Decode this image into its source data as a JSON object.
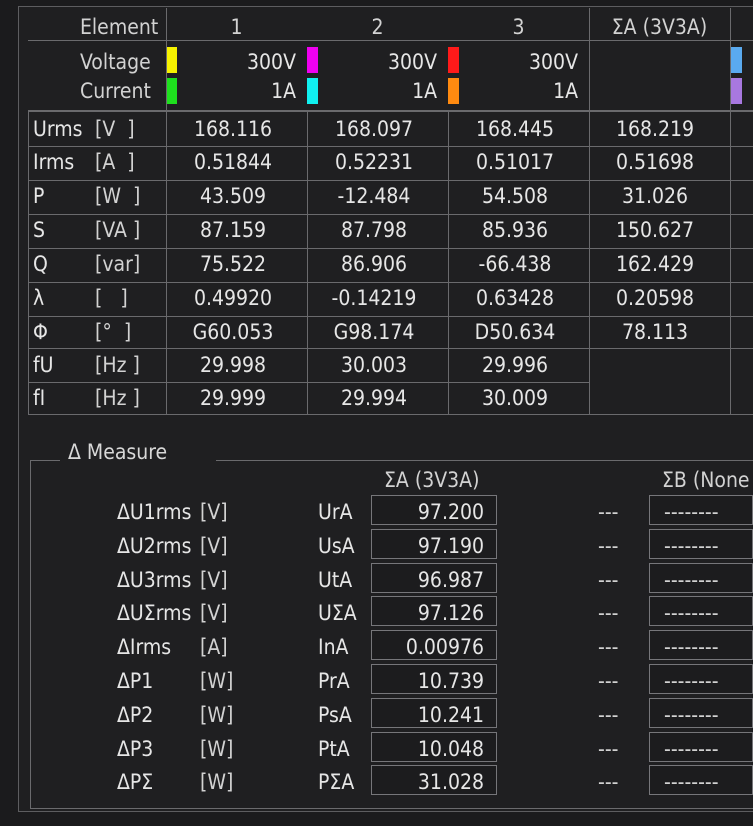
{
  "header": {
    "element_label": "Element",
    "columns": [
      "1",
      "2",
      "3",
      "ΣA (3V3A)"
    ],
    "voltage_label": "Voltage",
    "current_label": "Current",
    "voltage_ranges": [
      "300V",
      "300V",
      "300V"
    ],
    "current_ranges": [
      "1A",
      "1A",
      "1A"
    ],
    "voltage_colors": [
      "#f6f200",
      "#f000f0",
      "#ff1a1a"
    ],
    "current_colors": [
      "#1ee01e",
      "#10f0f0",
      "#ff8a10"
    ],
    "edge_colors": [
      "#5aaaf0",
      "#a878e0"
    ]
  },
  "rows": [
    {
      "name": "Urms",
      "unit": "[V  ]",
      "values": [
        "168.116",
        "168.097",
        "168.445",
        "168.219"
      ]
    },
    {
      "name": "Irms",
      "unit": "[A  ]",
      "values": [
        "0.51844",
        "0.52231",
        "0.51017",
        "0.51698"
      ]
    },
    {
      "name": "P",
      "unit": "[W  ]",
      "values": [
        "43.509",
        "-12.484",
        "54.508",
        "31.026"
      ]
    },
    {
      "name": "S",
      "unit": "[VA ]",
      "values": [
        "87.159",
        "87.798",
        "85.936",
        "150.627"
      ]
    },
    {
      "name": "Q",
      "unit": "[var]",
      "values": [
        "75.522",
        "86.906",
        "-66.438",
        "162.429"
      ]
    },
    {
      "name": "λ",
      "unit": "[   ]",
      "values": [
        "0.49920",
        "-0.14219",
        "0.63428",
        "0.20598"
      ]
    },
    {
      "name": "Φ",
      "unit": "[°  ]",
      "values": [
        "G60.053",
        "G98.174",
        "D50.634",
        "78.113"
      ]
    },
    {
      "name": "fU",
      "unit": "[Hz ]",
      "values": [
        "29.998",
        "30.003",
        "29.996",
        ""
      ]
    },
    {
      "name": "fI",
      "unit": "[Hz ]",
      "values": [
        "29.999",
        "29.994",
        "30.009",
        ""
      ]
    }
  ],
  "delta": {
    "title": "Δ Measure",
    "col_a": "ΣA (3V3A)",
    "col_b": "ΣB (None",
    "rows": [
      {
        "name": "ΔU1rms",
        "unit": "[V]",
        "sym": "UrA",
        "value": "97.200",
        "b_sym": "---",
        "b_value": "--------"
      },
      {
        "name": "ΔU2rms",
        "unit": "[V]",
        "sym": "UsA",
        "value": "97.190",
        "b_sym": "---",
        "b_value": "--------"
      },
      {
        "name": "ΔU3rms",
        "unit": "[V]",
        "sym": "UtA",
        "value": "96.987",
        "b_sym": "---",
        "b_value": "--------"
      },
      {
        "name": "ΔUΣrms",
        "unit": "[V]",
        "sym": "UΣA",
        "value": "97.126",
        "b_sym": "---",
        "b_value": "--------"
      },
      {
        "name": "ΔIrms",
        "unit": "[A]",
        "sym": "InA",
        "value": "0.00976",
        "b_sym": "---",
        "b_value": "--------"
      },
      {
        "name": "ΔP1",
        "unit": "[W]",
        "sym": "PrA",
        "value": "10.739",
        "b_sym": "---",
        "b_value": "--------"
      },
      {
        "name": "ΔP2",
        "unit": "[W]",
        "sym": "PsA",
        "value": "10.241",
        "b_sym": "---",
        "b_value": "--------"
      },
      {
        "name": "ΔP3",
        "unit": "[W]",
        "sym": "PtA",
        "value": "10.048",
        "b_sym": "---",
        "b_value": "--------"
      },
      {
        "name": "ΔPΣ",
        "unit": "[W]",
        "sym": "PΣA",
        "value": "31.028",
        "b_sym": "---",
        "b_value": "--------"
      }
    ]
  }
}
